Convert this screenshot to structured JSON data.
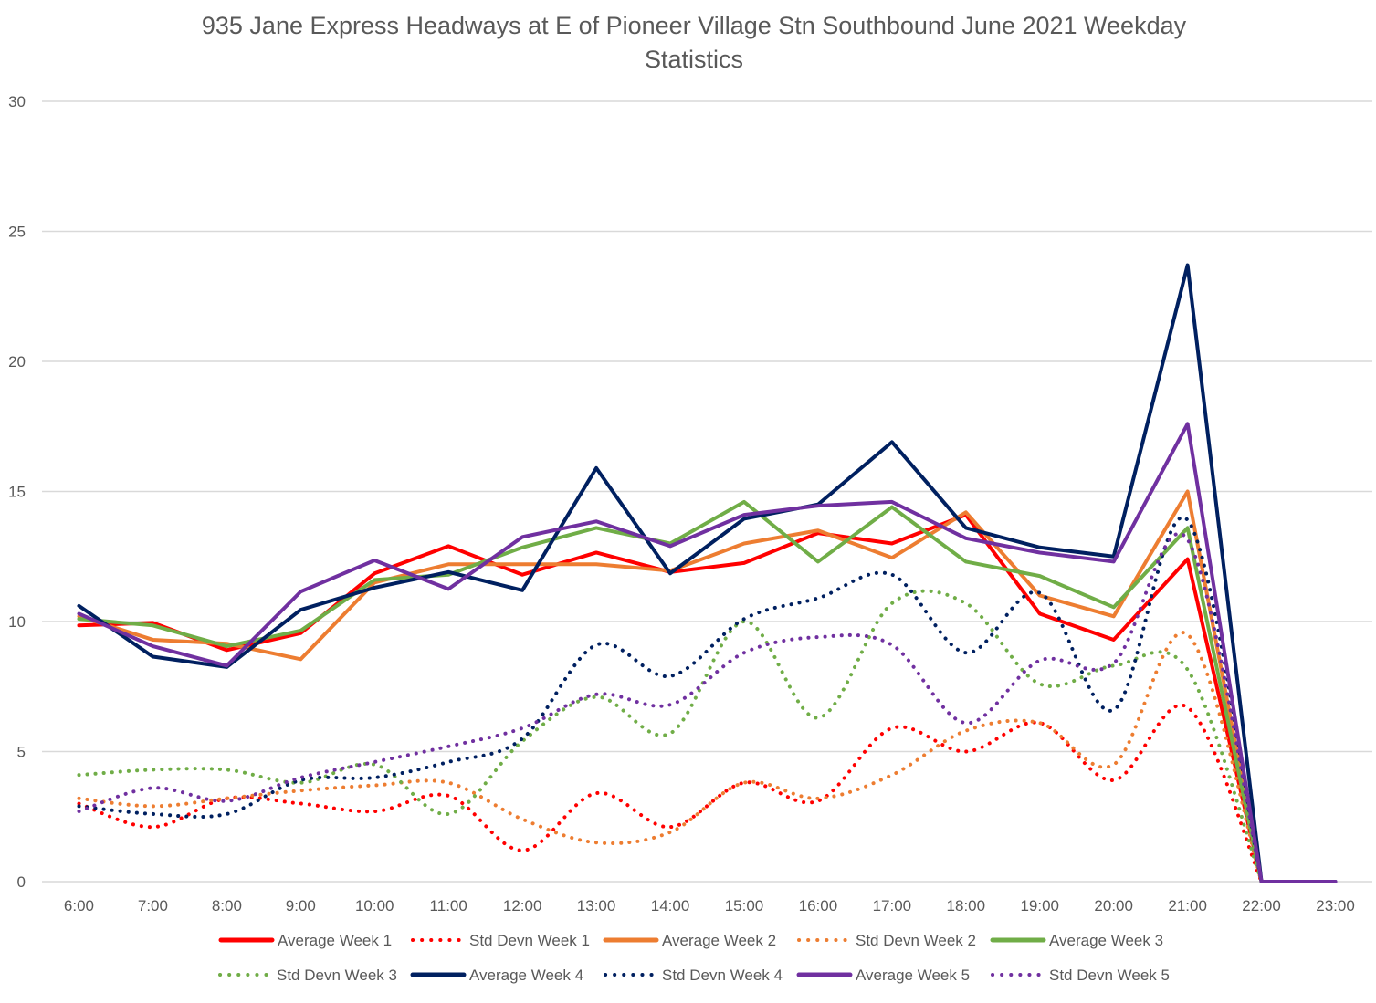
{
  "chart_data": {
    "type": "line",
    "title": "935 Jane Express Headways at E of Pioneer Village Stn Southbound June 2021 Weekday Statistics",
    "title_lines": [
      "935 Jane Express Headways at E of Pioneer Village Stn Southbound June 2021 Weekday",
      "Statistics"
    ],
    "xlabel": "",
    "ylabel": "",
    "ylim": [
      0,
      30
    ],
    "yticks": [
      0,
      5,
      10,
      15,
      20,
      25,
      30
    ],
    "grid": true,
    "legend_position": "bottom",
    "categories": [
      "6:00",
      "7:00",
      "8:00",
      "9:00",
      "10:00",
      "11:00",
      "12:00",
      "13:00",
      "14:00",
      "15:00",
      "16:00",
      "17:00",
      "18:00",
      "19:00",
      "20:00",
      "21:00",
      "22:00",
      "23:00"
    ],
    "series": [
      {
        "name": "Average Week 1",
        "color": "#FF0000",
        "style": "solid",
        "smooth": false,
        "values": [
          9.85,
          9.95,
          8.9,
          9.55,
          11.85,
          12.9,
          11.8,
          12.65,
          11.9,
          12.25,
          13.4,
          13.0,
          14.1,
          10.3,
          9.3,
          12.4,
          0,
          null
        ]
      },
      {
        "name": "Std Devn Week 1",
        "color": "#FF0000",
        "style": "dotted",
        "smooth": true,
        "values": [
          3.0,
          2.1,
          3.2,
          3.0,
          2.7,
          3.3,
          1.2,
          3.4,
          2.1,
          3.8,
          3.1,
          5.9,
          5.0,
          6.1,
          3.9,
          6.7,
          0,
          null
        ]
      },
      {
        "name": "Average Week 2",
        "color": "#ED7D31",
        "style": "solid",
        "smooth": false,
        "values": [
          10.2,
          9.3,
          9.15,
          8.55,
          11.5,
          12.2,
          12.2,
          12.2,
          11.95,
          13.0,
          13.5,
          12.45,
          14.2,
          11.0,
          10.2,
          15.0,
          0,
          null
        ]
      },
      {
        "name": "Std Devn Week 2",
        "color": "#ED7D31",
        "style": "dotted",
        "smooth": true,
        "values": [
          3.2,
          2.9,
          3.2,
          3.5,
          3.7,
          3.8,
          2.4,
          1.5,
          1.9,
          3.8,
          3.2,
          4.1,
          5.8,
          6.1,
          4.5,
          9.5,
          0,
          null
        ]
      },
      {
        "name": "Average Week 3",
        "color": "#70AD47",
        "style": "solid",
        "smooth": false,
        "values": [
          10.1,
          9.85,
          9.05,
          9.65,
          11.6,
          11.8,
          12.85,
          13.6,
          13.0,
          14.6,
          12.3,
          14.4,
          12.3,
          11.75,
          10.55,
          13.6,
          0,
          null
        ]
      },
      {
        "name": "Std Devn Week 3",
        "color": "#70AD47",
        "style": "dotted",
        "smooth": true,
        "values": [
          4.1,
          4.3,
          4.3,
          3.8,
          4.5,
          2.6,
          5.4,
          7.1,
          5.7,
          10.0,
          6.3,
          10.7,
          10.7,
          7.6,
          8.3,
          8.15,
          0,
          null
        ]
      },
      {
        "name": "Average Week 4",
        "color": "#002060",
        "style": "solid",
        "smooth": false,
        "values": [
          10.6,
          8.65,
          8.25,
          10.45,
          11.3,
          11.9,
          11.2,
          15.9,
          11.85,
          13.95,
          14.5,
          16.9,
          13.6,
          12.85,
          12.5,
          23.7,
          0,
          0
        ]
      },
      {
        "name": "Std Devn Week 4",
        "color": "#002060",
        "style": "dotted",
        "smooth": true,
        "values": [
          2.9,
          2.6,
          2.6,
          3.9,
          4.0,
          4.6,
          5.5,
          9.1,
          7.9,
          10.1,
          10.9,
          11.8,
          8.8,
          11.1,
          6.6,
          13.9,
          0,
          null
        ]
      },
      {
        "name": "Average Week 5",
        "color": "#7030A0",
        "style": "solid",
        "smooth": false,
        "values": [
          10.3,
          9.05,
          8.3,
          11.15,
          12.35,
          11.25,
          13.25,
          13.85,
          12.9,
          14.1,
          14.45,
          14.6,
          13.2,
          12.65,
          12.3,
          17.6,
          0,
          0
        ]
      },
      {
        "name": "Std Devn Week 5",
        "color": "#7030A0",
        "style": "dotted",
        "smooth": true,
        "values": [
          2.7,
          3.6,
          3.1,
          4.0,
          4.6,
          5.2,
          5.9,
          7.2,
          6.8,
          8.8,
          9.4,
          9.1,
          6.1,
          8.5,
          8.4,
          13.15,
          0,
          null
        ]
      }
    ]
  }
}
